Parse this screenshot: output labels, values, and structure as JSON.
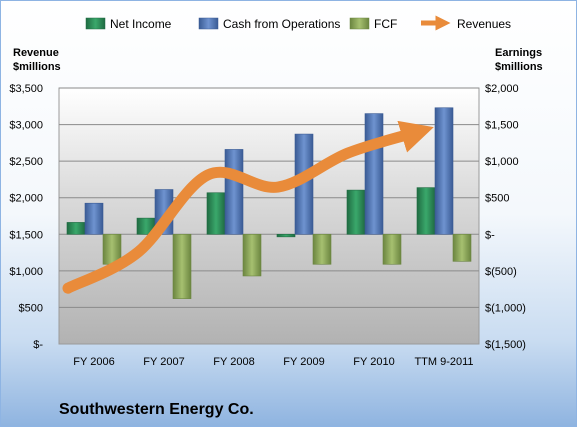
{
  "chart_data": {
    "type": "bar",
    "company": "Southwestern Energy Co.",
    "categories": [
      "FY 2006",
      "FY 2007",
      "FY 2008",
      "FY 2009",
      "FY 2010",
      "TTM 9-2011"
    ],
    "left_axis": {
      "label_line1": "Revenue",
      "label_line2": "$millions",
      "ylim": [
        0,
        3500
      ],
      "ticks": [
        0,
        500,
        1000,
        1500,
        2000,
        2500,
        3000,
        3500
      ],
      "tick_labels": [
        "$-",
        "$500",
        "$1,000",
        "$1,500",
        "$2,000",
        "$2,500",
        "$3,000",
        "$3,500"
      ]
    },
    "right_axis": {
      "label_line1": "Earnings",
      "label_line2": "$millions",
      "ylim": [
        -1500,
        2000
      ],
      "ticks": [
        -1500,
        -1000,
        -500,
        0,
        500,
        1000,
        1500,
        2000
      ],
      "tick_labels": [
        "$(1,500)",
        "$(1,000)",
        "$(500)",
        "$-",
        "$500",
        "$1,000",
        "$1,500",
        "$2,000"
      ]
    },
    "series": [
      {
        "name": "Net Income",
        "axis": "right",
        "kind": "bar",
        "color": "#2e8b57",
        "values": [
          162,
          221,
          568,
          -35,
          604,
          638
        ]
      },
      {
        "name": "Cash from Operations",
        "axis": "right",
        "kind": "bar",
        "color": "#4f75b6",
        "values": [
          425,
          612,
          1160,
          1370,
          1650,
          1730
        ]
      },
      {
        "name": "FCF",
        "axis": "right",
        "kind": "bar",
        "color": "#8aa65a",
        "values": [
          -410,
          -880,
          -570,
          -410,
          -410,
          -370
        ]
      },
      {
        "name": "Revenues",
        "axis": "left",
        "kind": "line",
        "color": "#e98b3a",
        "values": [
          763,
          1255,
          2312,
          2146,
          2611,
          2900
        ]
      }
    ],
    "grid": true,
    "legend_position": "top"
  }
}
